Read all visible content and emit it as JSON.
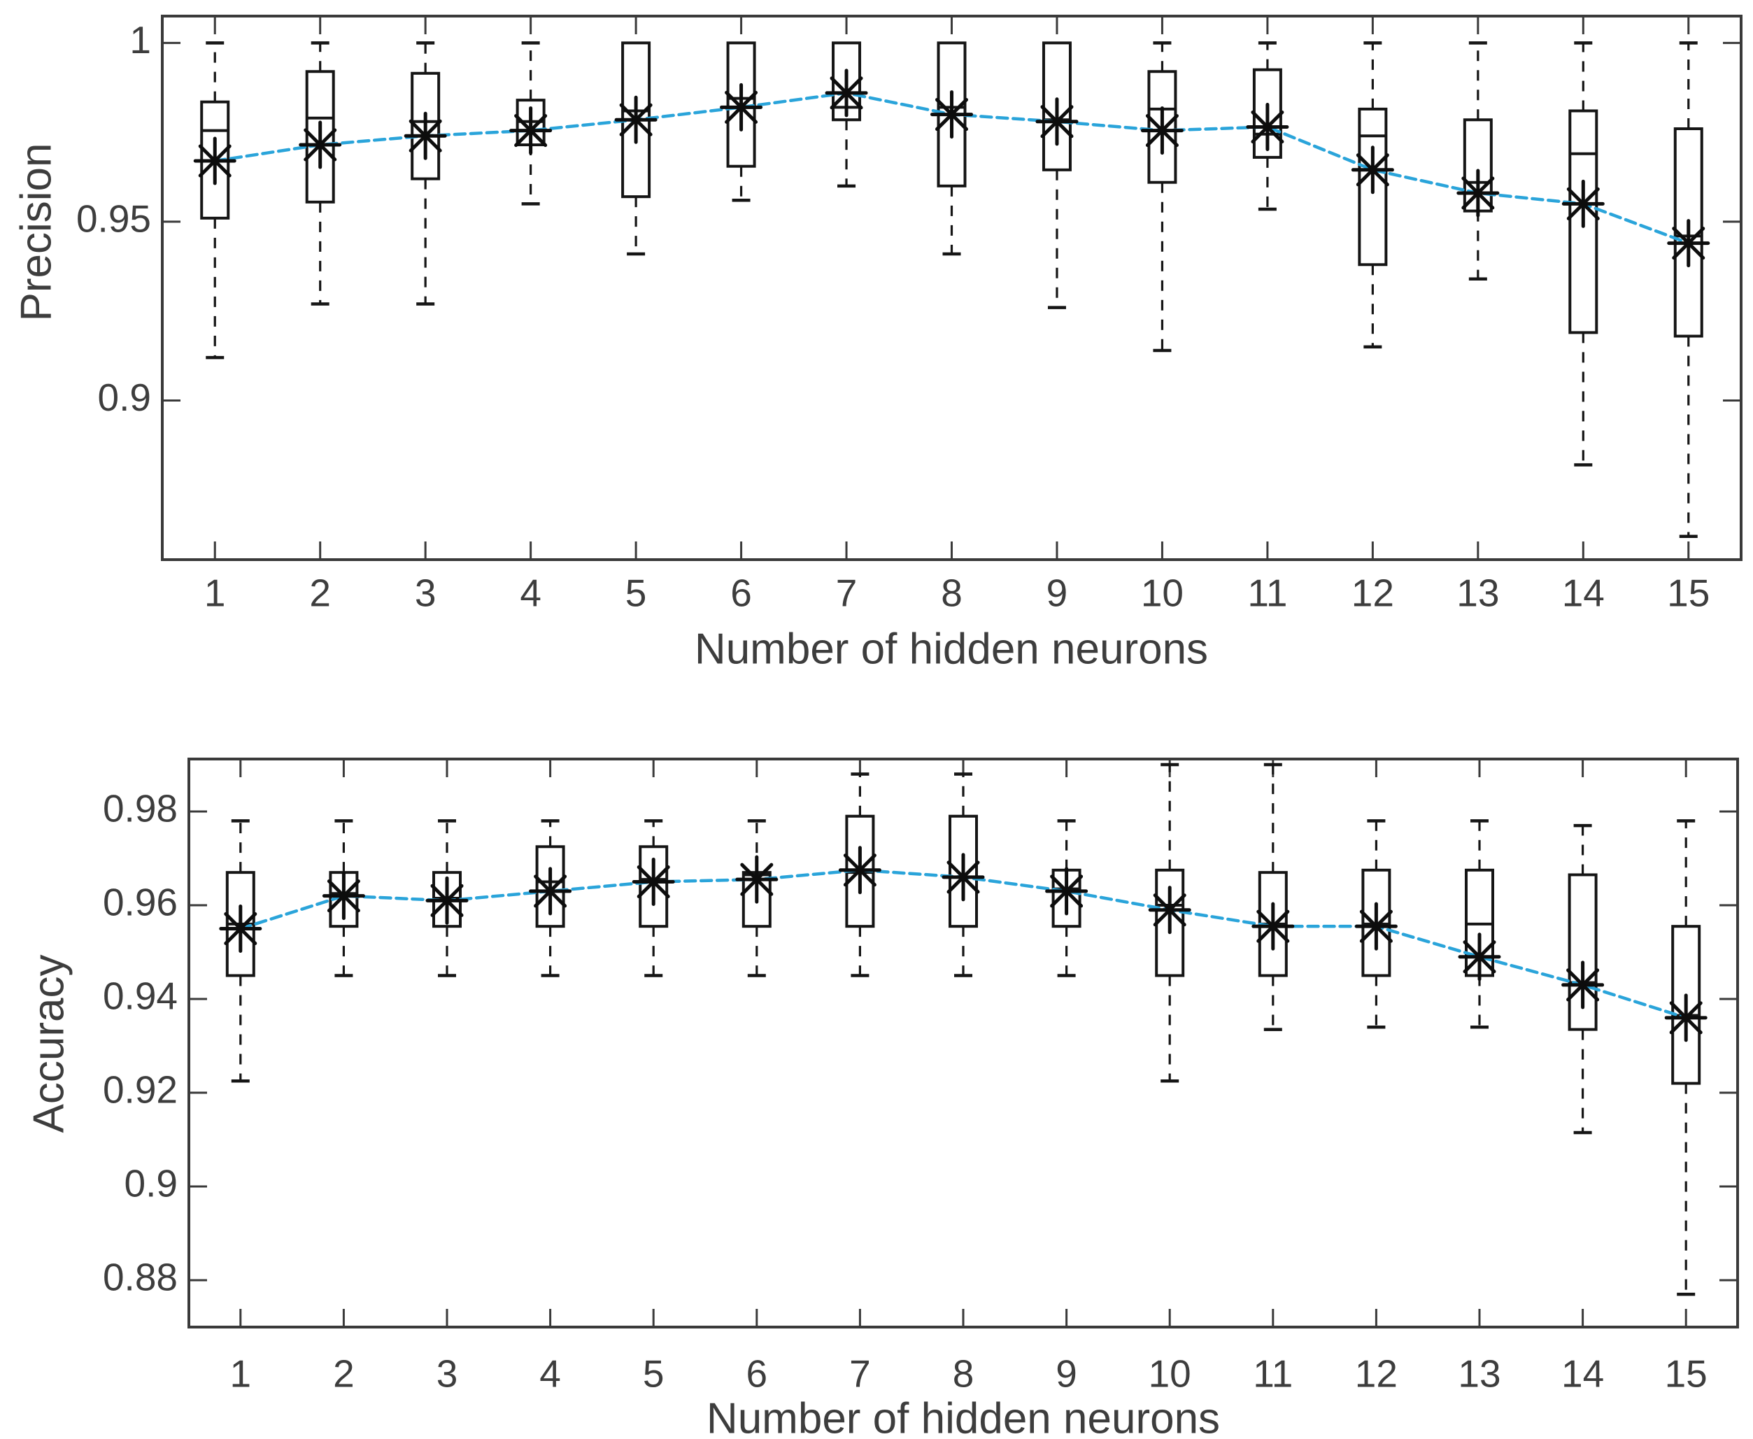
{
  "figure": {
    "background": "#ffffff",
    "text_color": "#3d3d3d",
    "axis_color": "#3a3a3a",
    "box_color": "#151515",
    "marker_color": "#0d0d0d",
    "mean_line_color": "#2aa4da"
  },
  "chart_data": [
    {
      "type": "box",
      "title": "",
      "xlabel": "Number of hidden neurons",
      "ylabel": "Precision",
      "categories": [
        1,
        2,
        3,
        4,
        5,
        6,
        7,
        8,
        9,
        10,
        11,
        12,
        13,
        14,
        15
      ],
      "x_tick_labels": [
        "1",
        "2",
        "3",
        "4",
        "5",
        "6",
        "7",
        "8",
        "9",
        "10",
        "11",
        "12",
        "13",
        "14",
        "15"
      ],
      "xlim": [
        0.5,
        15.5
      ],
      "ylim": [
        0.8555,
        1.0075
      ],
      "yticks": [
        1,
        0.95,
        0.9
      ],
      "ytick_labels": [
        "1",
        "0.95",
        "0.9"
      ],
      "grid": false,
      "legend": null,
      "boxes": [
        {
          "x": 1,
          "low": 0.912,
          "q1": 0.951,
          "median": 0.9755,
          "q3": 0.9835,
          "high": 1.0,
          "mean": 0.967
        },
        {
          "x": 2,
          "low": 0.927,
          "q1": 0.9555,
          "median": 0.979,
          "q3": 0.992,
          "high": 1.0,
          "mean": 0.9715
        },
        {
          "x": 3,
          "low": 0.927,
          "q1": 0.962,
          "median": 0.978,
          "q3": 0.9915,
          "high": 1.0,
          "mean": 0.974
        },
        {
          "x": 4,
          "low": 0.955,
          "q1": 0.9715,
          "median": 0.978,
          "q3": 0.984,
          "high": 1.0,
          "mean": 0.9755
        },
        {
          "x": 5,
          "low": 0.941,
          "q1": 0.957,
          "median": 0.981,
          "q3": 1.0,
          "high": 1.0,
          "mean": 0.9785
        },
        {
          "x": 6,
          "low": 0.956,
          "q1": 0.9655,
          "median": 0.9845,
          "q3": 1.0,
          "high": 1.0,
          "mean": 0.982
        },
        {
          "x": 7,
          "low": 0.96,
          "q1": 0.9785,
          "median": 0.982,
          "q3": 1.0,
          "high": 1.0,
          "mean": 0.986
        },
        {
          "x": 8,
          "low": 0.941,
          "q1": 0.96,
          "median": 0.982,
          "q3": 1.0,
          "high": 1.0,
          "mean": 0.98
        },
        {
          "x": 9,
          "low": 0.926,
          "q1": 0.9645,
          "median": 0.9785,
          "q3": 1.0,
          "high": 1.0,
          "mean": 0.978
        },
        {
          "x": 10,
          "low": 0.914,
          "q1": 0.961,
          "median": 0.9815,
          "q3": 0.992,
          "high": 1.0,
          "mean": 0.9755
        },
        {
          "x": 11,
          "low": 0.9535,
          "q1": 0.968,
          "median": 0.9745,
          "q3": 0.9925,
          "high": 1.0,
          "mean": 0.9765
        },
        {
          "x": 12,
          "low": 0.915,
          "q1": 0.938,
          "median": 0.974,
          "q3": 0.9815,
          "high": 1.0,
          "mean": 0.9645
        },
        {
          "x": 13,
          "low": 0.934,
          "q1": 0.953,
          "median": 0.961,
          "q3": 0.9785,
          "high": 1.0,
          "mean": 0.958
        },
        {
          "x": 14,
          "low": 0.882,
          "q1": 0.919,
          "median": 0.969,
          "q3": 0.981,
          "high": 1.0,
          "mean": 0.955
        },
        {
          "x": 15,
          "low": 0.862,
          "q1": 0.918,
          "median": 0.946,
          "q3": 0.976,
          "high": 1.0,
          "mean": 0.944
        }
      ],
      "series": [
        {
          "name": "mean",
          "type": "line",
          "color": "#2aa4da",
          "values": [
            0.967,
            0.9715,
            0.974,
            0.9755,
            0.9785,
            0.982,
            0.986,
            0.98,
            0.978,
            0.9755,
            0.9765,
            0.9645,
            0.958,
            0.955,
            0.944
          ]
        }
      ]
    },
    {
      "type": "box",
      "title": "",
      "xlabel": "Number of hidden neurons",
      "ylabel": "Accuracy",
      "categories": [
        1,
        2,
        3,
        4,
        5,
        6,
        7,
        8,
        9,
        10,
        11,
        12,
        13,
        14,
        15
      ],
      "x_tick_labels": [
        "1",
        "2",
        "3",
        "4",
        "5",
        "6",
        "7",
        "8",
        "9",
        "10",
        "11",
        "12",
        "13",
        "14",
        "15"
      ],
      "xlim": [
        0.5,
        15.5
      ],
      "ylim": [
        0.87,
        0.9912
      ],
      "yticks": [
        0.98,
        0.96,
        0.94,
        0.92,
        0.9,
        0.88
      ],
      "ytick_labels": [
        "0.98",
        "0.96",
        "0.94",
        "0.92",
        "0.9",
        "0.88"
      ],
      "grid": false,
      "legend": null,
      "boxes": [
        {
          "x": 1,
          "low": 0.9225,
          "q1": 0.945,
          "median": 0.956,
          "q3": 0.967,
          "high": 0.978,
          "mean": 0.955
        },
        {
          "x": 2,
          "low": 0.945,
          "q1": 0.9555,
          "median": 0.9625,
          "q3": 0.967,
          "high": 0.978,
          "mean": 0.962
        },
        {
          "x": 3,
          "low": 0.945,
          "q1": 0.9555,
          "median": 0.9615,
          "q3": 0.967,
          "high": 0.978,
          "mean": 0.961
        },
        {
          "x": 4,
          "low": 0.945,
          "q1": 0.9555,
          "median": 0.965,
          "q3": 0.9725,
          "high": 0.978,
          "mean": 0.963
        },
        {
          "x": 5,
          "low": 0.945,
          "q1": 0.9555,
          "median": 0.9655,
          "q3": 0.9725,
          "high": 0.978,
          "mean": 0.965
        },
        {
          "x": 6,
          "low": 0.945,
          "q1": 0.9555,
          "median": 0.9665,
          "q3": 0.967,
          "high": 0.978,
          "mean": 0.9655
        },
        {
          "x": 7,
          "low": 0.945,
          "q1": 0.9555,
          "median": 0.967,
          "q3": 0.979,
          "high": 0.988,
          "mean": 0.9675
        },
        {
          "x": 8,
          "low": 0.945,
          "q1": 0.9555,
          "median": 0.966,
          "q3": 0.979,
          "high": 0.988,
          "mean": 0.966
        },
        {
          "x": 9,
          "low": 0.945,
          "q1": 0.9555,
          "median": 0.9635,
          "q3": 0.9675,
          "high": 0.978,
          "mean": 0.963
        },
        {
          "x": 10,
          "low": 0.9225,
          "q1": 0.945,
          "median": 0.96,
          "q3": 0.9675,
          "high": 0.99,
          "mean": 0.959
        },
        {
          "x": 11,
          "low": 0.9335,
          "q1": 0.945,
          "median": 0.956,
          "q3": 0.967,
          "high": 0.99,
          "mean": 0.9555
        },
        {
          "x": 12,
          "low": 0.934,
          "q1": 0.945,
          "median": 0.956,
          "q3": 0.9675,
          "high": 0.978,
          "mean": 0.9555
        },
        {
          "x": 13,
          "low": 0.934,
          "q1": 0.945,
          "median": 0.956,
          "q3": 0.9675,
          "high": 0.978,
          "mean": 0.949
        },
        {
          "x": 14,
          "low": 0.9115,
          "q1": 0.9335,
          "median": 0.9435,
          "q3": 0.9665,
          "high": 0.977,
          "mean": 0.943
        },
        {
          "x": 15,
          "low": 0.877,
          "q1": 0.922,
          "median": 0.9365,
          "q3": 0.9555,
          "high": 0.978,
          "mean": 0.936
        }
      ],
      "series": [
        {
          "name": "mean",
          "type": "line",
          "color": "#2aa4da",
          "values": [
            0.955,
            0.962,
            0.961,
            0.963,
            0.965,
            0.9655,
            0.9675,
            0.966,
            0.963,
            0.959,
            0.9555,
            0.9555,
            0.949,
            0.943,
            0.936
          ]
        }
      ]
    }
  ]
}
